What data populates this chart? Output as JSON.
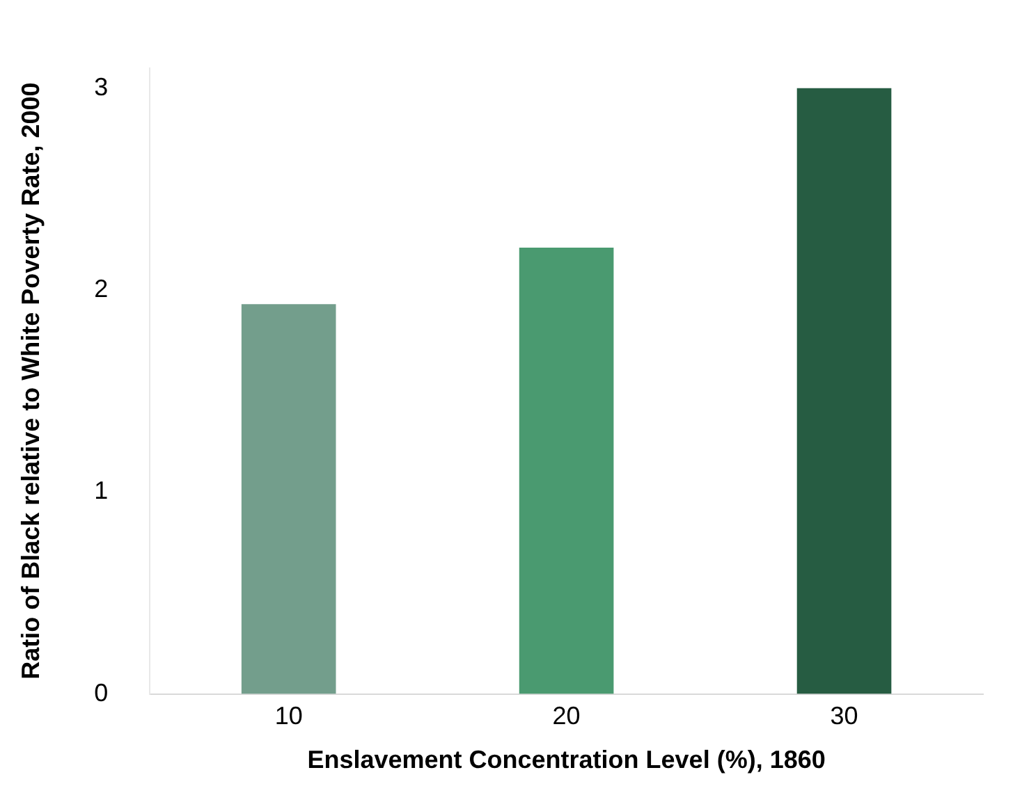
{
  "chart_data": {
    "type": "bar",
    "xlabel": "Enslavement Concentration Level (%), 1860",
    "ylabel": "Ratio of Black relative to White Poverty Rate, 2000",
    "categories": [
      "10",
      "20",
      "30"
    ],
    "values": [
      1.93,
      2.21,
      3.0
    ],
    "colors": [
      "#739e8c",
      "#4a9a70",
      "#265c42"
    ],
    "ylim": [
      0,
      3.1
    ],
    "yticks": [
      0,
      1,
      2,
      3
    ],
    "grid": false,
    "legend": false
  }
}
